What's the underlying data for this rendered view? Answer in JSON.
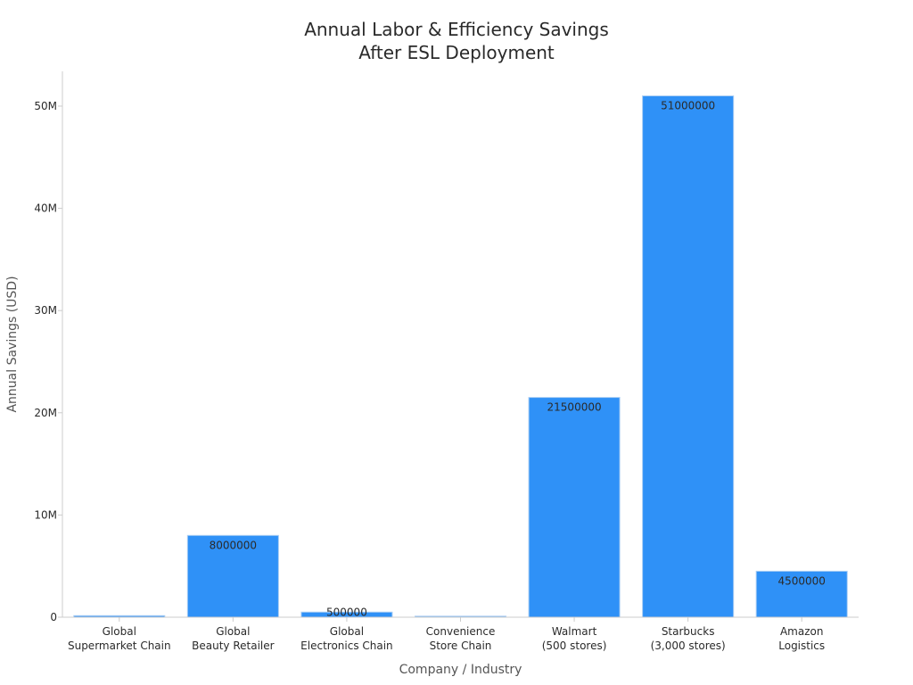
{
  "chart_data": {
    "type": "bar",
    "title": [
      "Annual Labor & Efficiency Savings",
      "After ESL Deployment"
    ],
    "xlabel": "Company / Industry",
    "ylabel": "Annual Savings (USD)",
    "categories": [
      [
        "Global",
        "Supermarket Chain"
      ],
      [
        "Global",
        "Beauty Retailer"
      ],
      [
        "Global",
        "Electronics Chain"
      ],
      [
        "Convenience",
        "Store Chain"
      ],
      [
        "Walmart",
        "(500 stores)"
      ],
      [
        "Starbucks",
        "(3,000 stores)"
      ],
      [
        "Amazon",
        "Logistics"
      ]
    ],
    "values": [
      150000,
      8000000,
      500000,
      100000,
      21500000,
      51000000,
      4500000
    ],
    "data_labels": [
      "",
      "8000000",
      "500000",
      "",
      "21500000",
      "51000000",
      "4500000"
    ],
    "ylim": [
      0,
      53400000
    ],
    "yticks": [
      0,
      10000000,
      20000000,
      30000000,
      40000000,
      50000000
    ],
    "ytick_labels": [
      "0",
      "10M",
      "20M",
      "30M",
      "40M",
      "50M"
    ],
    "grid": false,
    "legend": "none",
    "colors": {
      "bar_fill": "#2f91f7",
      "bar_edge": "#a9cdf4",
      "axis": "#cccccc",
      "text": "#2a2a2a",
      "axis_title": "#555555"
    }
  }
}
